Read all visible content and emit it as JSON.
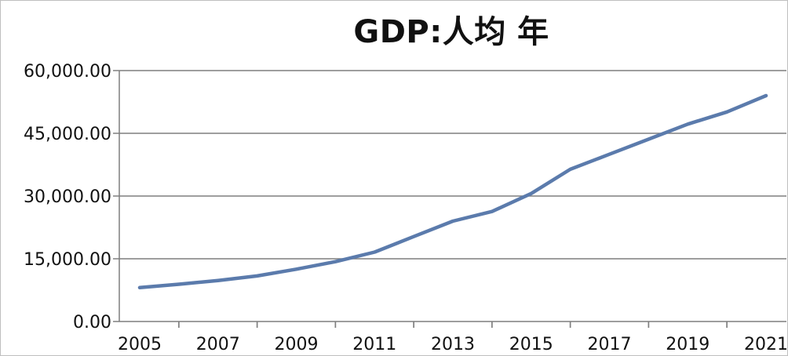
{
  "chart_data": {
    "type": "line",
    "title": "GDP:人均 年",
    "xlabel": "",
    "ylabel": "",
    "x": [
      2005,
      2006,
      2007,
      2008,
      2009,
      2010,
      2011,
      2012,
      2013,
      2014,
      2015,
      2016,
      2017,
      2018,
      2019,
      2020,
      2021
    ],
    "x_ticks": [
      "2005",
      "2007",
      "2009",
      "2011",
      "2013",
      "2015",
      "2017",
      "2019",
      "2021"
    ],
    "y_ticks": [
      "0.00",
      "15,000.00",
      "30,000.00",
      "45,000.00",
      "60,000.00"
    ],
    "ylim": [
      0,
      60000
    ],
    "xlim": [
      2005,
      2021
    ],
    "grid": "horizontal",
    "series": [
      {
        "values": [
          8100,
          8900,
          9800,
          10900,
          12500,
          14300,
          16600,
          20300,
          24000,
          26300,
          30600,
          36400,
          40000,
          43600,
          47200,
          50100,
          54000
        ]
      }
    ],
    "colors": {
      "line": "#5b7bac",
      "grid": "#7f7f7f",
      "axis": "#7f7f7f",
      "border": "#bfbfbf"
    }
  }
}
